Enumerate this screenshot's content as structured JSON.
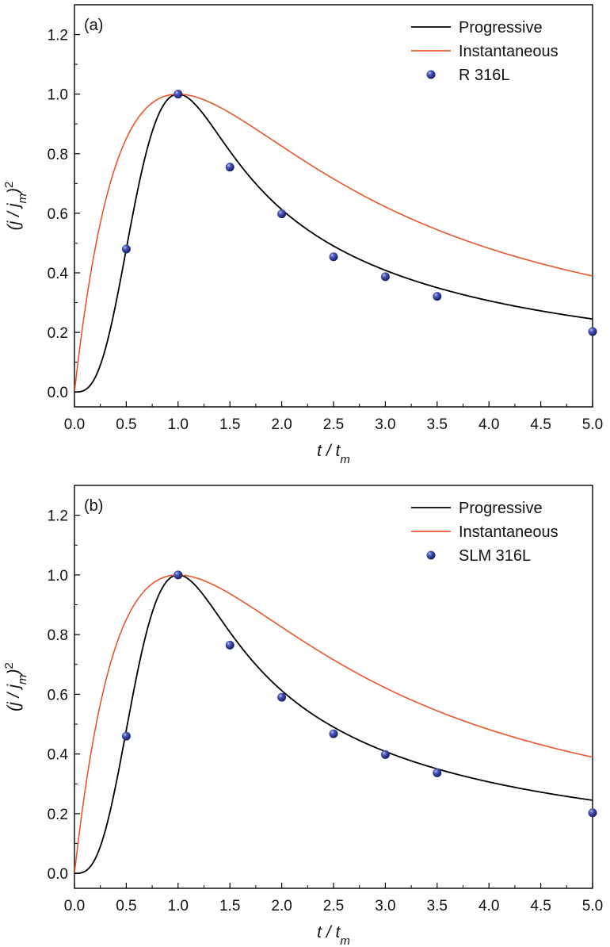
{
  "colors": {
    "progressive": "#000000",
    "instantaneous": "#e8562a",
    "marker": "#2b3590"
  },
  "chart_data": [
    {
      "type": "line",
      "panel_label": "(a)",
      "xlabel": "t / t_m",
      "ylabel": "(j / j_m)^2",
      "xlim": [
        0,
        5
      ],
      "ylim": [
        -0.05,
        1.3
      ],
      "xticks": [
        "0.0",
        "0.5",
        "1.0",
        "1.5",
        "2.0",
        "2.5",
        "3.0",
        "3.5",
        "4.0",
        "4.5",
        "5.0"
      ],
      "yticks": [
        "0.0",
        "0.2",
        "0.4",
        "0.6",
        "0.8",
        "1.0",
        "1.2"
      ],
      "grid": false,
      "legend_position": "top-right",
      "series": [
        {
          "name": "Progressive",
          "kind": "line",
          "model": "progressive"
        },
        {
          "name": "Instantaneous",
          "kind": "line",
          "model": "instantaneous"
        },
        {
          "name": "R 316L",
          "kind": "scatter",
          "x": [
            0.5,
            1.0,
            1.5,
            2.0,
            2.5,
            3.0,
            3.5,
            5.0
          ],
          "y": [
            0.48,
            1.0,
            0.755,
            0.598,
            0.454,
            0.387,
            0.321,
            0.203
          ]
        }
      ]
    },
    {
      "type": "line",
      "panel_label": "(b)",
      "xlabel": "t / t_m",
      "ylabel": "(j / j_m)^2",
      "xlim": [
        0,
        5
      ],
      "ylim": [
        -0.05,
        1.3
      ],
      "xticks": [
        "0.0",
        "0.5",
        "1.0",
        "1.5",
        "2.0",
        "2.5",
        "3.0",
        "3.5",
        "4.0",
        "4.5",
        "5.0"
      ],
      "yticks": [
        "0.0",
        "0.2",
        "0.4",
        "0.6",
        "0.8",
        "1.0",
        "1.2"
      ],
      "grid": false,
      "legend_position": "top-right",
      "series": [
        {
          "name": "Progressive",
          "kind": "line",
          "model": "progressive"
        },
        {
          "name": "Instantaneous",
          "kind": "line",
          "model": "instantaneous"
        },
        {
          "name": "SLM 316L",
          "kind": "scatter",
          "x": [
            0.5,
            1.0,
            1.5,
            2.0,
            2.5,
            3.0,
            3.5,
            5.0
          ],
          "y": [
            0.46,
            1.0,
            0.765,
            0.59,
            0.468,
            0.398,
            0.337,
            0.203
          ]
        }
      ]
    }
  ]
}
